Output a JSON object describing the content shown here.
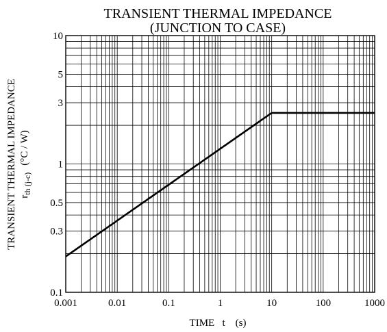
{
  "chart_data": {
    "type": "line",
    "title": "TRANSIENT THERMAL IMPEDANCE",
    "subtitle": "(JUNCTION TO CASE)",
    "xlabel": "TIME   t    (s)",
    "ylabel_line1": "TRANSIENT THERMAL IMPEDANCE",
    "ylabel_symbol": "r",
    "ylabel_subscript": "th (j-c)",
    "ylabel_units": "(°C / W)",
    "x_scale": "log",
    "y_scale": "log",
    "xlim": [
      0.001,
      1000
    ],
    "ylim": [
      0.1,
      10
    ],
    "x_ticks": [
      0.001,
      0.01,
      0.1,
      1,
      10,
      100,
      1000
    ],
    "x_tick_labels": [
      "0.001",
      "0.01",
      "0.1",
      "1",
      "10",
      "100",
      "1000"
    ],
    "y_ticks": [
      0.1,
      0.3,
      0.5,
      1,
      3,
      5,
      10
    ],
    "y_tick_labels": [
      "0.1",
      "0.3",
      "0.5",
      "1",
      "3",
      "5",
      "10"
    ],
    "grid": true,
    "series": [
      {
        "x": [
          0.001,
          10,
          1000
        ],
        "y": [
          0.19,
          2.5,
          2.5
        ]
      }
    ]
  }
}
